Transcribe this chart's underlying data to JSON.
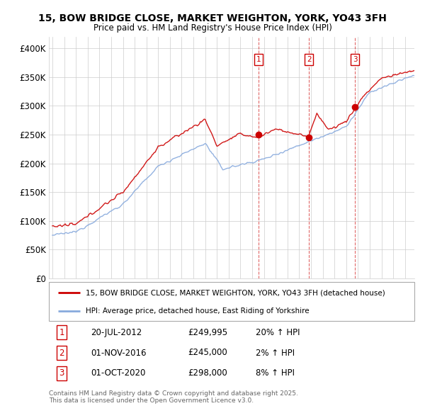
{
  "title": "15, BOW BRIDGE CLOSE, MARKET WEIGHTON, YORK, YO43 3FH",
  "subtitle": "Price paid vs. HM Land Registry's House Price Index (HPI)",
  "ylim": [
    0,
    420000
  ],
  "yticks": [
    0,
    50000,
    100000,
    150000,
    200000,
    250000,
    300000,
    350000,
    400000
  ],
  "ytick_labels": [
    "£0",
    "£50K",
    "£100K",
    "£150K",
    "£200K",
    "£250K",
    "£300K",
    "£350K",
    "£400K"
  ],
  "line_color_property": "#cc0000",
  "line_color_hpi": "#88aadd",
  "legend_property": "15, BOW BRIDGE CLOSE, MARKET WEIGHTON, YORK, YO43 3FH (detached house)",
  "legend_hpi": "HPI: Average price, detached house, East Riding of Yorkshire",
  "sale_years": [
    2012.55,
    2016.83,
    2020.75
  ],
  "sale_prices": [
    249995,
    245000,
    298000
  ],
  "sale_labels": [
    "1",
    "2",
    "3"
  ],
  "sale_info": [
    {
      "num": "1",
      "date": "20-JUL-2012",
      "price": "£249,995",
      "pct": "20% ↑ HPI"
    },
    {
      "num": "2",
      "date": "01-NOV-2016",
      "price": "£245,000",
      "pct": "2% ↑ HPI"
    },
    {
      "num": "3",
      "date": "01-OCT-2020",
      "price": "£298,000",
      "pct": "8% ↑ HPI"
    }
  ],
  "footer": "Contains HM Land Registry data © Crown copyright and database right 2025.\nThis data is licensed under the Open Government Licence v3.0.",
  "bg_color": "#ffffff",
  "grid_color": "#cccccc"
}
